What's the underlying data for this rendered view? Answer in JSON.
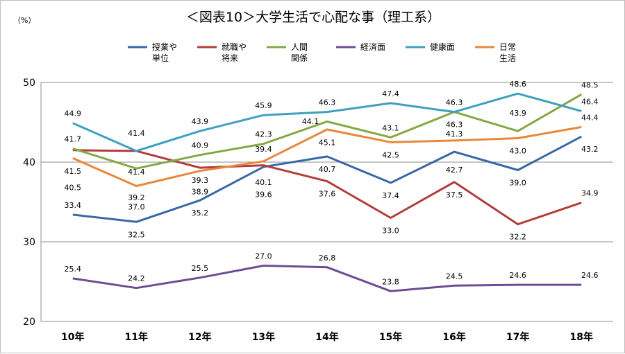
{
  "chart_data": {
    "type": "line",
    "title": "＜図表10＞大学生活で心配な事（理工系）",
    "unit_label": "（%）",
    "categories": [
      "10年",
      "11年",
      "12年",
      "13年",
      "14年",
      "15年",
      "16年",
      "17年",
      "18年"
    ],
    "ylim": [
      20,
      50
    ],
    "yticks": [
      20,
      30,
      40,
      50
    ],
    "grid": true,
    "legend_position": "top",
    "series": [
      {
        "name": "授業や\n単位",
        "color": "#3a67a8",
        "values": [
          33.4,
          32.5,
          35.2,
          39.4,
          40.7,
          37.4,
          41.3,
          39.0,
          43.2
        ],
        "labels": [
          "33.4",
          "32.5",
          "35.2",
          "39.4",
          "40.7",
          "37.4",
          "41.3",
          "39.0",
          "43.2"
        ]
      },
      {
        "name": "就職や\n将来",
        "color": "#b23d3a",
        "values": [
          41.5,
          41.4,
          39.3,
          39.6,
          37.6,
          33.0,
          37.5,
          32.2,
          34.9
        ],
        "labels": [
          "41.5",
          "41.4",
          "39.3",
          "39.6",
          "37.6",
          "33.0",
          "37.5",
          "32.2",
          "34.9"
        ]
      },
      {
        "name": "人間\n関係",
        "color": "#85a844",
        "values": [
          41.7,
          39.2,
          40.9,
          42.3,
          45.1,
          43.1,
          46.3,
          43.9,
          48.5
        ],
        "labels": [
          "41.7",
          "39.2",
          "40.9",
          "42.3",
          "45.1",
          "43.1",
          "46.3",
          "43.9",
          "48.5"
        ]
      },
      {
        "name": "経済面",
        "color": "#6c4d94",
        "values": [
          25.4,
          24.2,
          25.5,
          27.0,
          26.8,
          23.8,
          24.5,
          24.6,
          24.6
        ],
        "labels": [
          "25.4",
          "24.2",
          "25.5",
          "27.0",
          "26.8",
          "23.8",
          "24.5",
          "24.6",
          "24.6"
        ]
      },
      {
        "name": "健康面",
        "color": "#3ca0bf",
        "values": [
          44.9,
          41.4,
          43.9,
          45.9,
          46.3,
          47.4,
          46.3,
          48.6,
          46.4
        ],
        "labels": [
          "44.9",
          "41.4",
          "43.9",
          "45.9",
          "46.3",
          "47.4",
          "46.3",
          "48.6",
          "46.4"
        ]
      },
      {
        "name": "日常\n生活",
        "color": "#e9873a",
        "values": [
          40.5,
          37.0,
          38.9,
          40.1,
          44.1,
          42.5,
          42.7,
          43.0,
          44.4
        ],
        "labels": [
          "40.5",
          "37.0",
          "38.9",
          "40.1",
          "44.1",
          "42.5",
          "42.7",
          "43.0",
          "44.4"
        ]
      }
    ]
  }
}
